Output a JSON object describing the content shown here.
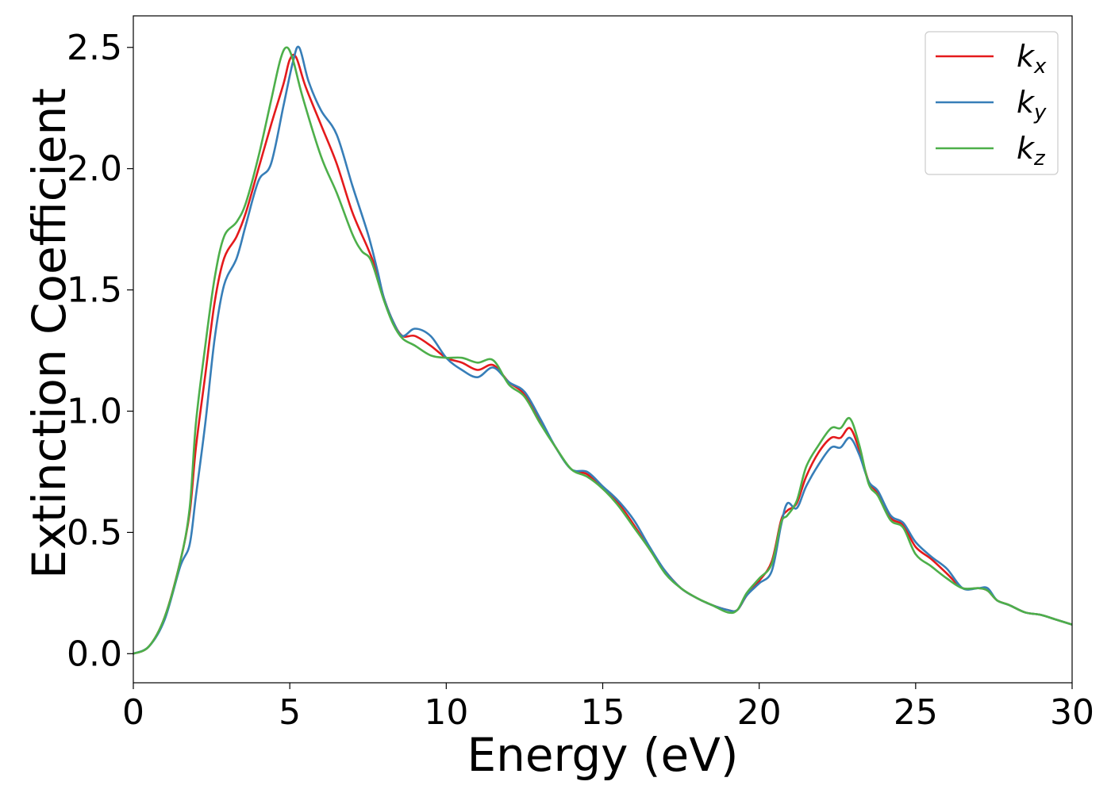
{
  "chart_data": {
    "type": "line",
    "xlabel": "Energy (eV)",
    "ylabel": "Extinction Coefficient",
    "xlim": [
      0,
      30
    ],
    "ylim": [
      -0.12,
      2.63
    ],
    "xticks": [
      0,
      5,
      10,
      15,
      20,
      25,
      30
    ],
    "xtick_labels": [
      "0",
      "5",
      "10",
      "15",
      "20",
      "25",
      "30"
    ],
    "yticks": [
      0.0,
      0.5,
      1.0,
      1.5,
      2.0,
      2.5
    ],
    "ytick_labels": [
      "0.0",
      "0.5",
      "1.0",
      "1.5",
      "2.0",
      "2.5"
    ],
    "grid": false,
    "legend_position": "top-right",
    "series": [
      {
        "name": "k",
        "subscript": "x",
        "color": "#e41a1c",
        "points": [
          [
            0,
            0.0
          ],
          [
            0.5,
            0.03
          ],
          [
            1.0,
            0.15
          ],
          [
            1.5,
            0.38
          ],
          [
            1.8,
            0.58
          ],
          [
            2.0,
            0.85
          ],
          [
            2.3,
            1.15
          ],
          [
            2.6,
            1.45
          ],
          [
            2.9,
            1.63
          ],
          [
            3.3,
            1.72
          ],
          [
            3.6,
            1.82
          ],
          [
            4.0,
            2.0
          ],
          [
            4.4,
            2.18
          ],
          [
            4.8,
            2.35
          ],
          [
            5.0,
            2.45
          ],
          [
            5.2,
            2.46
          ],
          [
            5.5,
            2.34
          ],
          [
            6.0,
            2.18
          ],
          [
            6.5,
            2.02
          ],
          [
            7.0,
            1.82
          ],
          [
            7.5,
            1.67
          ],
          [
            7.8,
            1.57
          ],
          [
            8.0,
            1.47
          ],
          [
            8.3,
            1.37
          ],
          [
            8.6,
            1.31
          ],
          [
            9.0,
            1.31
          ],
          [
            9.5,
            1.27
          ],
          [
            10.0,
            1.22
          ],
          [
            10.5,
            1.2
          ],
          [
            11.0,
            1.17
          ],
          [
            11.5,
            1.19
          ],
          [
            12.0,
            1.12
          ],
          [
            12.5,
            1.07
          ],
          [
            13.0,
            0.96
          ],
          [
            13.5,
            0.85
          ],
          [
            14.0,
            0.76
          ],
          [
            14.5,
            0.74
          ],
          [
            15.0,
            0.68
          ],
          [
            15.5,
            0.62
          ],
          [
            16.0,
            0.53
          ],
          [
            16.5,
            0.43
          ],
          [
            17.0,
            0.34
          ],
          [
            17.5,
            0.27
          ],
          [
            18.0,
            0.23
          ],
          [
            18.5,
            0.2
          ],
          [
            19.0,
            0.18
          ],
          [
            19.3,
            0.18
          ],
          [
            19.6,
            0.24
          ],
          [
            20.0,
            0.3
          ],
          [
            20.4,
            0.38
          ],
          [
            20.7,
            0.55
          ],
          [
            20.9,
            0.59
          ],
          [
            21.2,
            0.62
          ],
          [
            21.5,
            0.73
          ],
          [
            21.9,
            0.83
          ],
          [
            22.3,
            0.89
          ],
          [
            22.6,
            0.89
          ],
          [
            22.9,
            0.93
          ],
          [
            23.2,
            0.84
          ],
          [
            23.5,
            0.71
          ],
          [
            23.8,
            0.66
          ],
          [
            24.2,
            0.56
          ],
          [
            24.6,
            0.53
          ],
          [
            25.0,
            0.44
          ],
          [
            25.5,
            0.39
          ],
          [
            26.0,
            0.33
          ],
          [
            26.5,
            0.27
          ],
          [
            27.0,
            0.27
          ],
          [
            27.3,
            0.26
          ],
          [
            27.6,
            0.22
          ],
          [
            28.0,
            0.2
          ],
          [
            28.5,
            0.17
          ],
          [
            29.0,
            0.16
          ],
          [
            29.5,
            0.14
          ],
          [
            30.0,
            0.12
          ]
        ]
      },
      {
        "name": "k",
        "subscript": "y",
        "color": "#377eb8",
        "points": [
          [
            0,
            0.0
          ],
          [
            0.5,
            0.03
          ],
          [
            1.0,
            0.14
          ],
          [
            1.5,
            0.36
          ],
          [
            1.8,
            0.45
          ],
          [
            2.0,
            0.65
          ],
          [
            2.3,
            0.95
          ],
          [
            2.6,
            1.3
          ],
          [
            2.9,
            1.52
          ],
          [
            3.3,
            1.63
          ],
          [
            3.6,
            1.77
          ],
          [
            4.0,
            1.95
          ],
          [
            4.4,
            2.02
          ],
          [
            4.8,
            2.26
          ],
          [
            5.1,
            2.44
          ],
          [
            5.3,
            2.5
          ],
          [
            5.6,
            2.36
          ],
          [
            6.0,
            2.24
          ],
          [
            6.5,
            2.14
          ],
          [
            7.0,
            1.93
          ],
          [
            7.5,
            1.73
          ],
          [
            7.8,
            1.58
          ],
          [
            8.0,
            1.47
          ],
          [
            8.3,
            1.37
          ],
          [
            8.6,
            1.31
          ],
          [
            9.0,
            1.34
          ],
          [
            9.5,
            1.31
          ],
          [
            10.0,
            1.22
          ],
          [
            10.5,
            1.17
          ],
          [
            11.0,
            1.14
          ],
          [
            11.5,
            1.18
          ],
          [
            12.0,
            1.12
          ],
          [
            12.5,
            1.08
          ],
          [
            13.0,
            0.97
          ],
          [
            13.5,
            0.85
          ],
          [
            14.0,
            0.76
          ],
          [
            14.5,
            0.75
          ],
          [
            15.0,
            0.69
          ],
          [
            15.5,
            0.63
          ],
          [
            16.0,
            0.55
          ],
          [
            16.5,
            0.44
          ],
          [
            17.0,
            0.34
          ],
          [
            17.5,
            0.27
          ],
          [
            18.0,
            0.23
          ],
          [
            18.5,
            0.2
          ],
          [
            19.0,
            0.18
          ],
          [
            19.3,
            0.18
          ],
          [
            19.6,
            0.24
          ],
          [
            20.0,
            0.29
          ],
          [
            20.4,
            0.34
          ],
          [
            20.7,
            0.53
          ],
          [
            20.9,
            0.62
          ],
          [
            21.2,
            0.6
          ],
          [
            21.5,
            0.69
          ],
          [
            21.9,
            0.78
          ],
          [
            22.3,
            0.85
          ],
          [
            22.6,
            0.85
          ],
          [
            22.9,
            0.89
          ],
          [
            23.2,
            0.82
          ],
          [
            23.5,
            0.71
          ],
          [
            23.8,
            0.67
          ],
          [
            24.2,
            0.57
          ],
          [
            24.6,
            0.54
          ],
          [
            25.0,
            0.46
          ],
          [
            25.5,
            0.4
          ],
          [
            26.0,
            0.35
          ],
          [
            26.5,
            0.27
          ],
          [
            27.0,
            0.27
          ],
          [
            27.3,
            0.27
          ],
          [
            27.6,
            0.22
          ],
          [
            28.0,
            0.2
          ],
          [
            28.5,
            0.17
          ],
          [
            29.0,
            0.16
          ],
          [
            29.5,
            0.14
          ],
          [
            30.0,
            0.12
          ]
        ]
      },
      {
        "name": "k",
        "subscript": "z",
        "color": "#4daf4a",
        "points": [
          [
            0,
            0.0
          ],
          [
            0.5,
            0.03
          ],
          [
            1.0,
            0.15
          ],
          [
            1.5,
            0.38
          ],
          [
            1.8,
            0.6
          ],
          [
            2.0,
            0.95
          ],
          [
            2.3,
            1.27
          ],
          [
            2.6,
            1.55
          ],
          [
            2.9,
            1.72
          ],
          [
            3.3,
            1.78
          ],
          [
            3.6,
            1.86
          ],
          [
            4.0,
            2.05
          ],
          [
            4.4,
            2.28
          ],
          [
            4.7,
            2.45
          ],
          [
            4.9,
            2.5
          ],
          [
            5.1,
            2.45
          ],
          [
            5.4,
            2.3
          ],
          [
            6.0,
            2.05
          ],
          [
            6.5,
            1.9
          ],
          [
            7.0,
            1.73
          ],
          [
            7.3,
            1.66
          ],
          [
            7.6,
            1.62
          ],
          [
            8.0,
            1.46
          ],
          [
            8.3,
            1.36
          ],
          [
            8.6,
            1.3
          ],
          [
            9.0,
            1.27
          ],
          [
            9.5,
            1.23
          ],
          [
            10.0,
            1.22
          ],
          [
            10.5,
            1.22
          ],
          [
            11.0,
            1.2
          ],
          [
            11.5,
            1.21
          ],
          [
            12.0,
            1.11
          ],
          [
            12.5,
            1.06
          ],
          [
            13.0,
            0.95
          ],
          [
            13.5,
            0.85
          ],
          [
            14.0,
            0.76
          ],
          [
            14.5,
            0.73
          ],
          [
            15.0,
            0.68
          ],
          [
            15.5,
            0.61
          ],
          [
            16.0,
            0.52
          ],
          [
            16.5,
            0.43
          ],
          [
            17.0,
            0.33
          ],
          [
            17.5,
            0.27
          ],
          [
            18.0,
            0.23
          ],
          [
            18.5,
            0.2
          ],
          [
            19.0,
            0.17
          ],
          [
            19.3,
            0.18
          ],
          [
            19.6,
            0.25
          ],
          [
            20.0,
            0.31
          ],
          [
            20.4,
            0.37
          ],
          [
            20.7,
            0.54
          ],
          [
            20.9,
            0.57
          ],
          [
            21.2,
            0.63
          ],
          [
            21.5,
            0.77
          ],
          [
            21.9,
            0.86
          ],
          [
            22.3,
            0.93
          ],
          [
            22.6,
            0.93
          ],
          [
            22.9,
            0.97
          ],
          [
            23.2,
            0.86
          ],
          [
            23.5,
            0.7
          ],
          [
            23.8,
            0.65
          ],
          [
            24.2,
            0.55
          ],
          [
            24.6,
            0.52
          ],
          [
            25.0,
            0.41
          ],
          [
            25.5,
            0.36
          ],
          [
            26.0,
            0.31
          ],
          [
            26.5,
            0.27
          ],
          [
            27.0,
            0.27
          ],
          [
            27.3,
            0.26
          ],
          [
            27.6,
            0.22
          ],
          [
            28.0,
            0.2
          ],
          [
            28.5,
            0.17
          ],
          [
            29.0,
            0.16
          ],
          [
            29.5,
            0.14
          ],
          [
            30.0,
            0.12
          ]
        ]
      }
    ]
  }
}
